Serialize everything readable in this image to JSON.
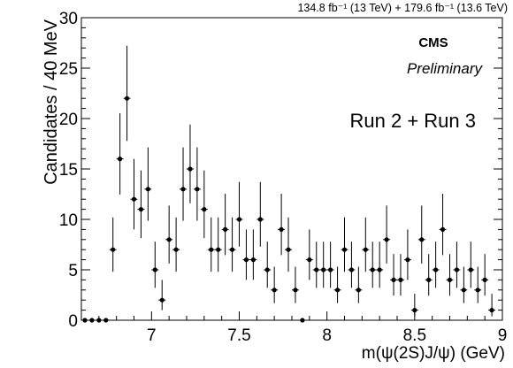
{
  "chart_data": {
    "type": "scatter",
    "lumi_label": "134.8 fb⁻¹ (13 TeV) + 179.6 fb⁻¹ (13.6 TeV)",
    "experiment": "CMS",
    "status": "Preliminary",
    "run_label": "Run 2 + Run 3",
    "xlabel": "m(ψ(2S)J/ψ) (GeV)",
    "ylabel": "Candidates / 40 MeV",
    "xlim": [
      6.6,
      9.0
    ],
    "ylim": [
      0,
      30
    ],
    "x_ticks": [
      "7",
      "7.5",
      "8",
      "8.5",
      "9"
    ],
    "y_ticks": [
      "0",
      "5",
      "10",
      "15",
      "20",
      "25",
      "30"
    ],
    "grid": false,
    "bin_width": 0.04,
    "bins_start": 6.6,
    "values": [
      0,
      0,
      0,
      0,
      7,
      16,
      22,
      12,
      11,
      13,
      5,
      2,
      8,
      7,
      13,
      15,
      13,
      11,
      7,
      7,
      9,
      7,
      10,
      6,
      6,
      10,
      5,
      3,
      9,
      7,
      3,
      0,
      6,
      5,
      5,
      5,
      3,
      7,
      5,
      3,
      7,
      5,
      5,
      8,
      4,
      4,
      6,
      1,
      8,
      4,
      5,
      9,
      4,
      5,
      3,
      5,
      3,
      4,
      1
    ]
  }
}
